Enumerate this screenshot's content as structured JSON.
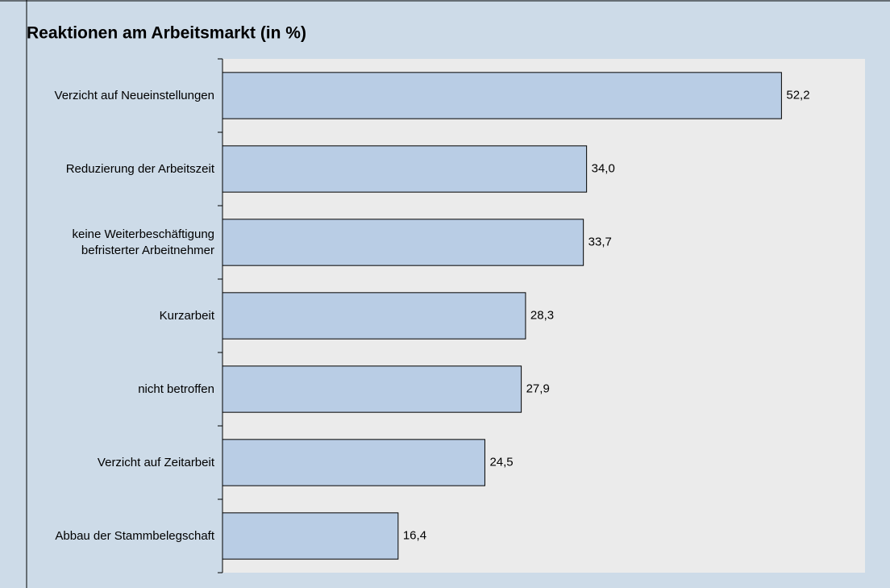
{
  "chart_data": {
    "type": "bar",
    "orientation": "horizontal",
    "title": "Reaktionen am Arbeitsmarkt (in %)",
    "categories": [
      "Verzicht auf Neueinstellungen",
      "Reduzierung der Arbeitszeit",
      "keine Weiterbeschäftigung\nbefristerter Arbeitnehmer",
      "Kurzarbeit",
      "nicht betroffen",
      "Verzicht auf Zeitarbeit",
      "Abbau der Stammbelegschaft"
    ],
    "values": [
      52.2,
      34.0,
      33.7,
      28.3,
      27.9,
      24.5,
      16.4
    ],
    "value_labels": [
      "52,2",
      "34,0",
      "33,7",
      "28,3",
      "27,9",
      "24,5",
      "16,4"
    ],
    "color": "#b9cde5",
    "xlim": [
      0,
      60
    ]
  }
}
